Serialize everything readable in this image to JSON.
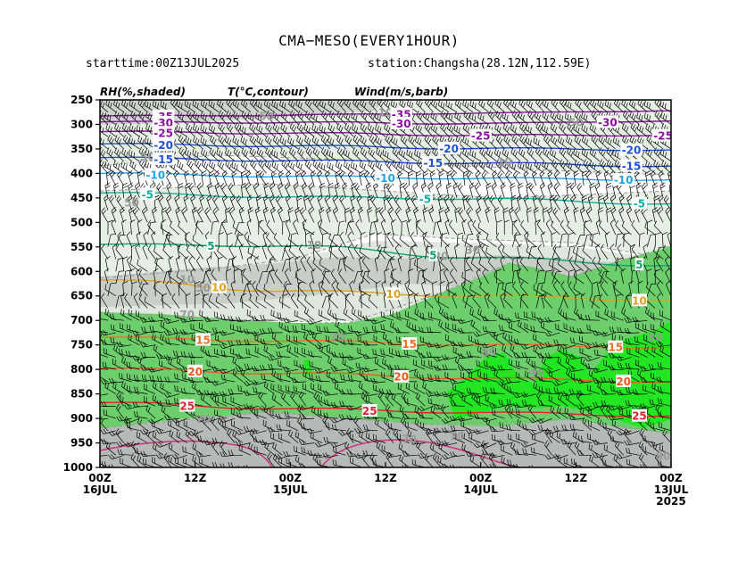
{
  "header": {
    "title": "CMA−MESO(EVERY1HOUR)",
    "starttime": "starttime:00Z13JUL2025",
    "station": "station:Changsha(28.12N,112.59E)"
  },
  "legend": {
    "rh": "RH(%,shaded)",
    "temp": "T(°C,contour)",
    "wind": "Wind(m/s,barb)"
  },
  "colors": {
    "rh50": "#e6efe4",
    "rh60": "#cfd6cf",
    "rh70": "#c0c7c0",
    "rh80": "#6ccf6c",
    "rh90": "#22e622",
    "rh_bottom": "#b4b8b4"
  },
  "chart_data": {
    "type": "heatmap",
    "yaxis": {
      "ticks": [
        "250",
        "300",
        "350",
        "400",
        "450",
        "500",
        "550",
        "600",
        "650",
        "700",
        "750",
        "800",
        "850",
        "900",
        "950",
        "1000"
      ],
      "range": [
        250,
        1000
      ]
    },
    "xaxis": {
      "ticks": [
        {
          "top": "00Z",
          "bottom": "16JUL",
          "extra": ""
        },
        {
          "top": "12Z",
          "bottom": "",
          "extra": ""
        },
        {
          "top": "00Z",
          "bottom": "15JUL",
          "extra": ""
        },
        {
          "top": "12Z",
          "bottom": "",
          "extra": ""
        },
        {
          "top": "00Z",
          "bottom": "14JUL",
          "extra": ""
        },
        {
          "top": "12Z",
          "bottom": "",
          "extra": ""
        },
        {
          "top": "00Z",
          "bottom": "13JUL",
          "extra": "2025"
        }
      ],
      "hours": [
        72,
        60,
        48,
        36,
        24,
        12,
        0
      ]
    },
    "temperature_contours": [
      {
        "value": -35,
        "label": "-35",
        "color": "#8a0fa0",
        "p": [
          [
            72,
            283
          ],
          [
            48,
            281
          ],
          [
            24,
            277
          ],
          [
            0,
            272
          ]
        ],
        "labels": [
          [
            64,
            -35
          ],
          [
            34,
            -35
          ]
        ]
      },
      {
        "value": -30,
        "label": "-30",
        "color": "#8a0fa0",
        "p": [
          [
            72,
            295
          ],
          [
            48,
            296
          ],
          [
            24,
            298
          ],
          [
            0,
            293
          ]
        ],
        "labels": [
          [
            64,
            -30
          ],
          [
            34,
            -30
          ],
          [
            8,
            -30
          ]
        ]
      },
      {
        "value": -25,
        "label": "-25",
        "color": "#8a0fa0",
        "p": [
          [
            72,
            315
          ],
          [
            48,
            318
          ],
          [
            24,
            322
          ],
          [
            0,
            322
          ]
        ],
        "labels": [
          [
            64,
            -25
          ],
          [
            24,
            -25
          ],
          [
            1,
            -25
          ]
        ]
      },
      {
        "value": -20,
        "label": "-20",
        "color": "#1f4fd8",
        "p": [
          [
            72,
            340
          ],
          [
            48,
            344
          ],
          [
            24,
            349
          ],
          [
            0,
            352
          ]
        ],
        "labels": [
          [
            64,
            -20
          ],
          [
            28,
            -20
          ],
          [
            5,
            -20
          ]
        ]
      },
      {
        "value": -15,
        "label": "-15",
        "color": "#1f4fd8",
        "p": [
          [
            72,
            368
          ],
          [
            48,
            374
          ],
          [
            24,
            379
          ],
          [
            0,
            385
          ]
        ],
        "labels": [
          [
            64,
            -15
          ],
          [
            30,
            -15
          ],
          [
            5,
            -15
          ]
        ]
      },
      {
        "value": -10,
        "label": "-10",
        "color": "#1aa6f0",
        "p": [
          [
            72,
            400
          ],
          [
            48,
            406
          ],
          [
            24,
            410
          ],
          [
            0,
            413
          ]
        ],
        "labels": [
          [
            65,
            -10
          ],
          [
            36,
            -10
          ],
          [
            6,
            -10
          ]
        ]
      },
      {
        "value": -5,
        "label": "-5",
        "color": "#10b0a0",
        "p": [
          [
            72,
            440
          ],
          [
            48,
            448
          ],
          [
            24,
            452
          ],
          [
            0,
            462
          ]
        ],
        "labels": [
          [
            66,
            -5
          ],
          [
            31,
            -5
          ],
          [
            4,
            -5
          ]
        ]
      },
      {
        "value": 5,
        "label": "5",
        "color": "#10a070",
        "p": [
          [
            72,
            545
          ],
          [
            48,
            548
          ],
          [
            24,
            572
          ],
          [
            0,
            588
          ]
        ],
        "labels": [
          [
            58,
            5
          ],
          [
            30,
            5
          ],
          [
            4,
            5
          ]
        ]
      },
      {
        "value": 10,
        "label": "10",
        "color": "#e0a020",
        "p": [
          [
            72,
            618
          ],
          [
            48,
            640
          ],
          [
            24,
            650
          ],
          [
            0,
            660
          ]
        ],
        "labels": [
          [
            57,
            10
          ],
          [
            35,
            10
          ],
          [
            4,
            10
          ]
        ]
      },
      {
        "value": 15,
        "label": "15",
        "color": "#f07020",
        "p": [
          [
            72,
            735
          ],
          [
            48,
            742
          ],
          [
            24,
            750
          ],
          [
            0,
            755
          ]
        ],
        "labels": [
          [
            59,
            15
          ],
          [
            33,
            15
          ],
          [
            7,
            15
          ]
        ]
      },
      {
        "value": 20,
        "label": "20",
        "color": "#e85a20",
        "p": [
          [
            72,
            798
          ],
          [
            48,
            808
          ],
          [
            24,
            818
          ],
          [
            0,
            825
          ]
        ],
        "labels": [
          [
            60,
            20
          ],
          [
            34,
            20
          ],
          [
            6,
            20
          ]
        ]
      },
      {
        "value": 25,
        "label": "25",
        "color": "#e02030",
        "p": [
          [
            72,
            868
          ],
          [
            48,
            880
          ],
          [
            24,
            888
          ],
          [
            0,
            895
          ]
        ],
        "labels": [
          [
            61,
            25
          ],
          [
            38,
            25
          ],
          [
            4,
            25
          ]
        ]
      }
    ],
    "rh_labels": [
      {
        "t": 51,
        "p": 282,
        "v": "50"
      },
      {
        "t": 66,
        "p": 365,
        "v": "30"
      },
      {
        "t": 45,
        "p": 545,
        "v": "10"
      },
      {
        "t": 36,
        "p": 275,
        "v": "10"
      },
      {
        "t": 21,
        "p": 375,
        "v": "10"
      },
      {
        "t": 68,
        "p": 458,
        "v": "50"
      },
      {
        "t": 61,
        "p": 615,
        "v": "10"
      },
      {
        "t": 59,
        "p": 632,
        "v": "50"
      },
      {
        "t": 61,
        "p": 687,
        "v": "70"
      },
      {
        "t": 42,
        "p": 733,
        "v": "70"
      },
      {
        "t": 23,
        "p": 763,
        "v": "80"
      },
      {
        "t": 17,
        "p": 807,
        "v": "90"
      },
      {
        "t": 29,
        "p": 568,
        "v": "30"
      },
      {
        "t": 25,
        "p": 555,
        "v": "30"
      },
      {
        "t": 2,
        "p": 733,
        "v": "80"
      },
      {
        "t": 59,
        "p": 900,
        "v": "70"
      },
      {
        "t": 33,
        "p": 941,
        "v": "70"
      },
      {
        "t": 27,
        "p": 935,
        "v": "70"
      },
      {
        "t": 1,
        "p": 975,
        "v": "80"
      },
      {
        "t": 12,
        "p": 295,
        "v": "50"
      }
    ]
  }
}
